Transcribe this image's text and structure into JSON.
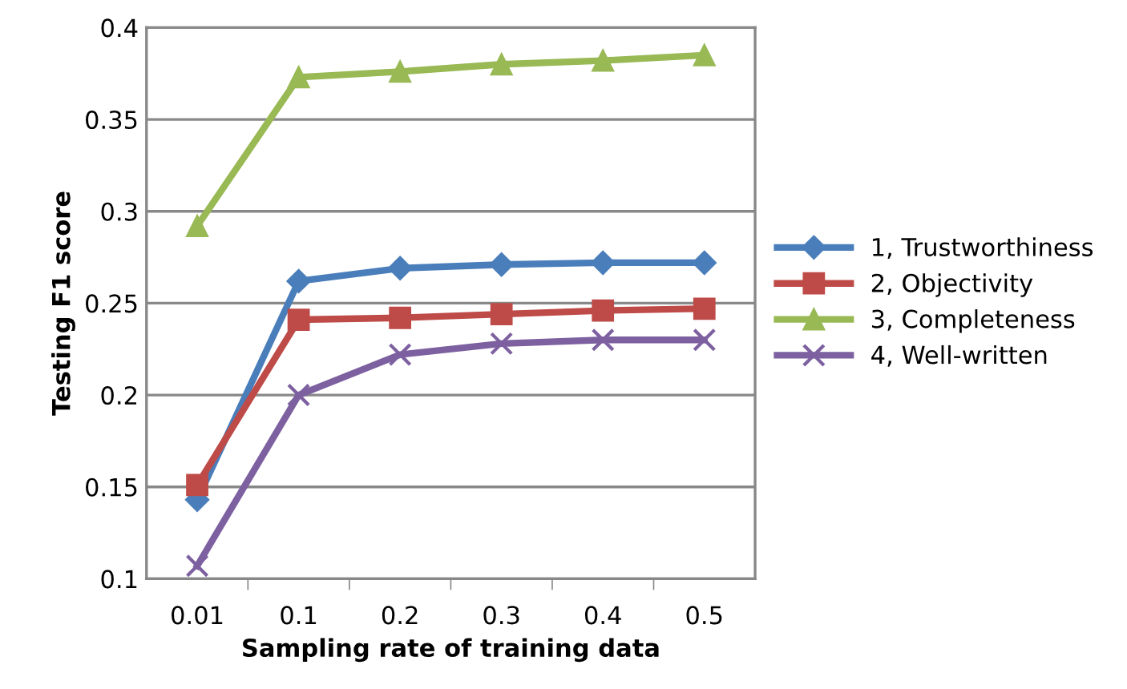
{
  "chart_data": {
    "type": "line",
    "xlabel": "Sampling rate of training data",
    "ylabel": "Testing F1 score",
    "categories": [
      "0.01",
      "0.1",
      "0.2",
      "0.3",
      "0.4",
      "0.5"
    ],
    "series": [
      {
        "name": "1, Trustworthiness",
        "color": "#4a7ebb",
        "marker": "diamond",
        "values": [
          0.143,
          0.262,
          0.269,
          0.271,
          0.272,
          0.272
        ]
      },
      {
        "name": "2, Objectivity",
        "color": "#be4b48",
        "marker": "square",
        "values": [
          0.151,
          0.241,
          0.242,
          0.244,
          0.246,
          0.247
        ]
      },
      {
        "name": "3, Completeness",
        "color": "#98b954",
        "marker": "triangle",
        "values": [
          0.292,
          0.373,
          0.376,
          0.38,
          0.382,
          0.385
        ]
      },
      {
        "name": "4, Well-written",
        "color": "#7d60a0",
        "marker": "cross",
        "values": [
          0.107,
          0.2,
          0.222,
          0.228,
          0.23,
          0.23
        ]
      }
    ],
    "ylim": [
      0.1,
      0.4
    ],
    "yticks": [
      0.1,
      0.15,
      0.2,
      0.25,
      0.3,
      0.35,
      0.4
    ],
    "grid": "y",
    "legend": "right",
    "line_style": "solid"
  }
}
